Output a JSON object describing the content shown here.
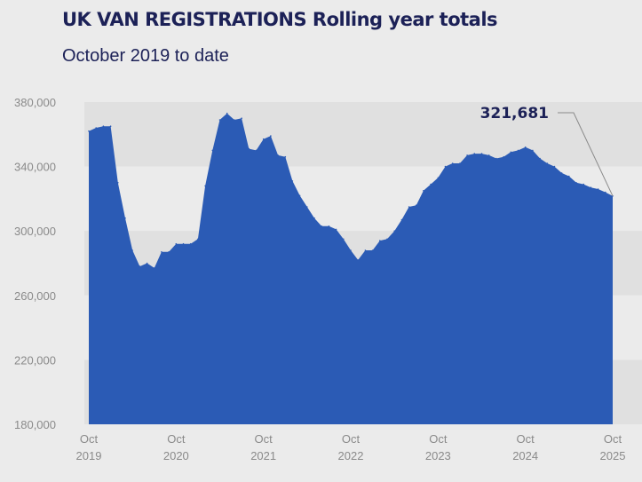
{
  "header": {
    "title": "UK VAN REGISTRATIONS Rolling year totals",
    "subtitle": "October 2019 to date"
  },
  "colors": {
    "background": "#ebebeb",
    "band_dark": "#e0e0e0",
    "band_light": "#ebebeb",
    "area_fill": "#2b5bb5",
    "title_text": "#1c2157",
    "tick_text": "#8a8a8a"
  },
  "chart_data": {
    "type": "area",
    "title": "UK VAN REGISTRATIONS Rolling year totals",
    "subtitle": "October 2019 to date",
    "xlabel": "",
    "ylabel": "",
    "ylim": [
      180000,
      380000
    ],
    "grid": "alternating horizontal bands",
    "legend": "none",
    "y_ticks": [
      "380,000",
      "340,000",
      "300,000",
      "260,000",
      "220,000",
      "180,000"
    ],
    "x_ticks": [
      {
        "month": "Oct",
        "year": "2019",
        "index": 0
      },
      {
        "month": "Oct",
        "year": "2020",
        "index": 12
      },
      {
        "month": "Oct",
        "year": "2021",
        "index": 24
      },
      {
        "month": "Oct",
        "year": "2022",
        "index": 36
      },
      {
        "month": "Oct",
        "year": "2023",
        "index": 48
      },
      {
        "month": "Oct",
        "year": "2024",
        "index": 60
      },
      {
        "month": "Oct",
        "year": "2025",
        "index": 72
      }
    ],
    "x_start": "2019-10",
    "x_end": "2025-10",
    "series": [
      {
        "values": [
          362000,
          364000,
          365000,
          365000,
          330000,
          308000,
          288000,
          278000,
          280000,
          277000,
          287000,
          287000,
          292000,
          292000,
          292000,
          295000,
          328000,
          350000,
          369000,
          373000,
          369000,
          370000,
          351000,
          350000,
          357000,
          359000,
          347000,
          346000,
          331000,
          322000,
          315000,
          308000,
          303000,
          303000,
          301000,
          295000,
          288000,
          282000,
          288000,
          288000,
          294000,
          295000,
          300000,
          307000,
          315000,
          316000,
          325000,
          329000,
          333000,
          340000,
          342000,
          342000,
          347000,
          348000,
          348000,
          347000,
          345000,
          346000,
          349000,
          350000,
          352000,
          350000,
          345000,
          342000,
          340000,
          336000,
          334000,
          330000,
          329000,
          327000,
          326000,
          324000,
          321681
        ]
      }
    ],
    "annotations": [
      {
        "text": "321,681",
        "target": "last point"
      }
    ]
  }
}
